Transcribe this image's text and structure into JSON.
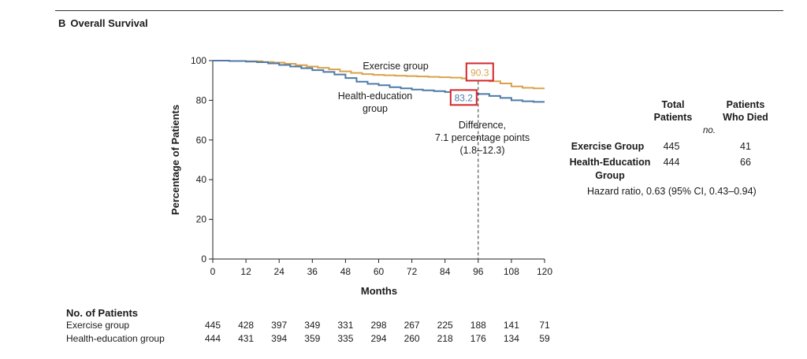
{
  "figure": {
    "panel_letter": "B",
    "panel_title": "Overall Survival"
  },
  "chart_data": {
    "type": "line",
    "title": "Overall Survival",
    "xlabel": "Months",
    "ylabel": "Percentage of Patients",
    "xlim": [
      0,
      120
    ],
    "ylim": [
      0,
      100
    ],
    "xticks": [
      0,
      12,
      24,
      36,
      48,
      60,
      72,
      84,
      96,
      108,
      120
    ],
    "yticks": [
      0,
      20,
      40,
      60,
      80,
      100
    ],
    "series": [
      {
        "name": "Exercise group",
        "color": "#d9a24b",
        "x": [
          0,
          6,
          12,
          18,
          22,
          26,
          30,
          34,
          38,
          42,
          46,
          50,
          54,
          58,
          62,
          66,
          70,
          74,
          78,
          82,
          86,
          90,
          94,
          96,
          100,
          104,
          108,
          112,
          116,
          120
        ],
        "y": [
          100,
          99.8,
          99.7,
          99.3,
          99.0,
          98.4,
          97.7,
          97.0,
          96.4,
          95.6,
          94.6,
          93.8,
          93.2,
          92.8,
          92.6,
          92.4,
          92.2,
          92.0,
          91.8,
          91.6,
          91.4,
          91.0,
          90.6,
          90.3,
          89.6,
          88.5,
          87.0,
          86.3,
          86.0,
          86.0
        ]
      },
      {
        "name": "Health-education group",
        "color": "#4e7aa8",
        "x": [
          0,
          6,
          12,
          16,
          20,
          24,
          28,
          32,
          36,
          40,
          44,
          48,
          52,
          56,
          60,
          64,
          68,
          72,
          76,
          80,
          84,
          88,
          92,
          96,
          100,
          104,
          108,
          112,
          116,
          120
        ],
        "y": [
          100,
          99.8,
          99.5,
          99.2,
          98.6,
          97.8,
          97.0,
          96.2,
          95.2,
          94.3,
          93.0,
          91.2,
          89.4,
          88.3,
          87.6,
          86.6,
          86.0,
          85.4,
          85.0,
          84.6,
          84.2,
          83.8,
          83.5,
          83.2,
          82.2,
          81.2,
          80.0,
          79.5,
          79.2,
          79.2
        ]
      }
    ],
    "annotations": {
      "exercise_label": "Exercise group",
      "health_label_line1": "Health-education",
      "health_label_line2": "group",
      "exercise_value_at_96": 90.3,
      "health_value_at_96": 83.2,
      "exercise_value_label": "90.3",
      "health_value_label": "83.2",
      "marker_month": 96,
      "diff_line1": "Difference,",
      "diff_line2": "7.1 percentage points",
      "diff_line3": "(1.8–12.3)"
    }
  },
  "legend_table": {
    "col1_header_line1": "Total",
    "col1_header_line2": "Patients",
    "col2_header_line1": "Patients",
    "col2_header_line2": "Who Died",
    "units": "no.",
    "rows": [
      {
        "label_line1": "Exercise Group",
        "label_line2": "",
        "total": "445",
        "died": "41"
      },
      {
        "label_line1": "Health-Education",
        "label_line2": "Group",
        "total": "444",
        "died": "66"
      }
    ],
    "hazard_ratio": "Hazard ratio, 0.63 (95% CI, 0.43–0.94)"
  },
  "risk_table": {
    "title": "No. of Patients",
    "rows": [
      {
        "label": "Exercise group",
        "values": [
          "445",
          "428",
          "397",
          "349",
          "331",
          "298",
          "267",
          "225",
          "188",
          "141",
          "71"
        ]
      },
      {
        "label": "Health-education group",
        "values": [
          "444",
          "431",
          "394",
          "359",
          "335",
          "294",
          "260",
          "218",
          "176",
          "134",
          "59"
        ]
      }
    ]
  }
}
